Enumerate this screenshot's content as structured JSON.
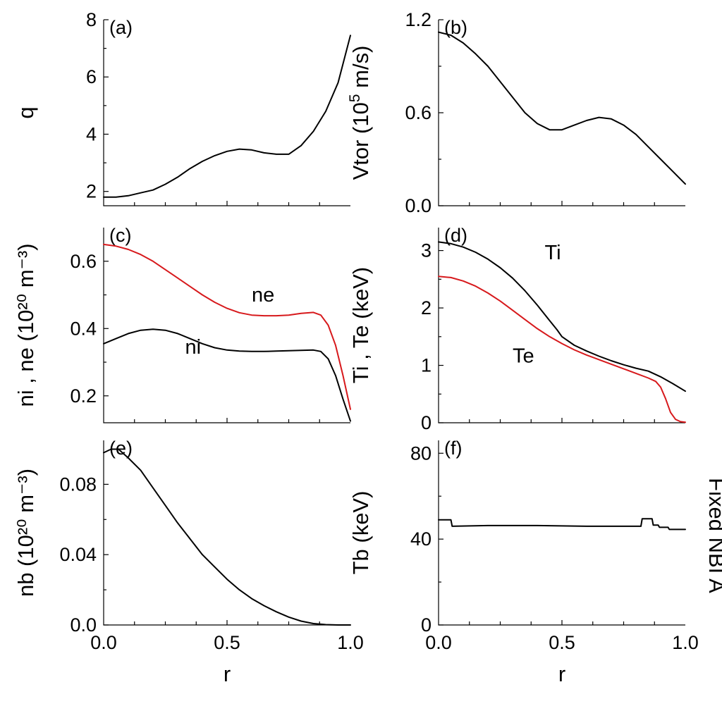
{
  "side_label": "Fixed NBI A",
  "chart_data": [
    {
      "type": "line",
      "panel": "(a)",
      "xlabel": "",
      "ylabel": "q",
      "xlim": [
        0,
        1
      ],
      "ylim": [
        1.5,
        8
      ],
      "xticks": [
        0,
        0.5,
        1
      ],
      "yticks": [
        2,
        4,
        6,
        8
      ],
      "show_xtick_labels": false,
      "series": [
        {
          "name": "",
          "color": "#000000",
          "x": [
            0,
            0.05,
            0.1,
            0.15,
            0.2,
            0.25,
            0.3,
            0.35,
            0.4,
            0.45,
            0.5,
            0.55,
            0.6,
            0.65,
            0.7,
            0.75,
            0.8,
            0.85,
            0.9,
            0.95,
            1.0
          ],
          "y": [
            1.8,
            1.8,
            1.85,
            1.95,
            2.05,
            2.25,
            2.5,
            2.8,
            3.05,
            3.25,
            3.4,
            3.48,
            3.45,
            3.35,
            3.3,
            3.3,
            3.6,
            4.1,
            4.8,
            5.8,
            7.45
          ]
        }
      ]
    },
    {
      "type": "line",
      "panel": "(b)",
      "xlabel": "",
      "ylabel": "Vtor (10^5 m/s)",
      "ylabel_parts": [
        "Vtor (10",
        "5",
        " m/s)"
      ],
      "xlim": [
        0,
        1
      ],
      "ylim": [
        0,
        1.2
      ],
      "xticks": [
        0,
        0.5,
        1
      ],
      "yticks": [
        0.0,
        0.6,
        1.2
      ],
      "ytick_labels": [
        "0.0",
        "0.6",
        "1.2"
      ],
      "show_xtick_labels": false,
      "series": [
        {
          "name": "",
          "color": "#000000",
          "x": [
            0,
            0.05,
            0.1,
            0.15,
            0.2,
            0.25,
            0.3,
            0.35,
            0.4,
            0.45,
            0.5,
            0.55,
            0.6,
            0.65,
            0.7,
            0.75,
            0.8,
            0.85,
            0.9,
            0.95,
            1.0
          ],
          "y": [
            1.12,
            1.1,
            1.05,
            0.98,
            0.9,
            0.8,
            0.7,
            0.6,
            0.53,
            0.49,
            0.49,
            0.52,
            0.55,
            0.57,
            0.56,
            0.52,
            0.46,
            0.38,
            0.3,
            0.22,
            0.14
          ]
        }
      ]
    },
    {
      "type": "line",
      "panel": "(c)",
      "xlabel": "",
      "ylabel": "ni , ne (10²⁰ m⁻³)",
      "xlim": [
        0,
        1
      ],
      "ylim": [
        0.12,
        0.7
      ],
      "xticks": [
        0,
        0.5,
        1
      ],
      "yticks": [
        0.2,
        0.4,
        0.6
      ],
      "ytick_labels": [
        "0.2",
        "0.4",
        "0.6"
      ],
      "show_xtick_labels": false,
      "series": [
        {
          "name": "ne",
          "color": "#d7191c",
          "label_at": [
            0.6,
            0.48
          ],
          "x": [
            0,
            0.05,
            0.1,
            0.15,
            0.2,
            0.25,
            0.3,
            0.35,
            0.4,
            0.45,
            0.5,
            0.55,
            0.6,
            0.65,
            0.7,
            0.75,
            0.8,
            0.85,
            0.88,
            0.91,
            0.94,
            0.97,
            1.0
          ],
          "y": [
            0.65,
            0.645,
            0.635,
            0.62,
            0.6,
            0.575,
            0.55,
            0.525,
            0.5,
            0.478,
            0.46,
            0.447,
            0.44,
            0.438,
            0.438,
            0.44,
            0.445,
            0.448,
            0.44,
            0.41,
            0.35,
            0.26,
            0.16
          ]
        },
        {
          "name": "ni",
          "color": "#000000",
          "label_at": [
            0.33,
            0.325
          ],
          "x": [
            0,
            0.05,
            0.1,
            0.15,
            0.2,
            0.25,
            0.3,
            0.35,
            0.4,
            0.45,
            0.5,
            0.55,
            0.6,
            0.65,
            0.7,
            0.75,
            0.8,
            0.85,
            0.88,
            0.91,
            0.94,
            0.97,
            1.0
          ],
          "y": [
            0.355,
            0.37,
            0.385,
            0.395,
            0.398,
            0.395,
            0.385,
            0.37,
            0.355,
            0.343,
            0.336,
            0.333,
            0.332,
            0.332,
            0.333,
            0.334,
            0.335,
            0.336,
            0.332,
            0.31,
            0.26,
            0.19,
            0.125
          ]
        }
      ]
    },
    {
      "type": "line",
      "panel": "(d)",
      "xlabel": "",
      "ylabel": "Ti , Te (keV)",
      "xlim": [
        0,
        1
      ],
      "ylim": [
        0,
        3.4
      ],
      "xticks": [
        0,
        0.5,
        1
      ],
      "yticks": [
        0,
        1,
        2,
        3
      ],
      "show_xtick_labels": false,
      "series": [
        {
          "name": "Ti",
          "color": "#000000",
          "label_at": [
            0.43,
            2.85
          ],
          "x": [
            0,
            0.05,
            0.1,
            0.15,
            0.2,
            0.25,
            0.3,
            0.35,
            0.4,
            0.45,
            0.48,
            0.5,
            0.55,
            0.6,
            0.65,
            0.7,
            0.75,
            0.8,
            0.85,
            0.9,
            0.95,
            1.0
          ],
          "y": [
            3.15,
            3.12,
            3.06,
            2.97,
            2.85,
            2.7,
            2.52,
            2.3,
            2.05,
            1.78,
            1.62,
            1.5,
            1.35,
            1.25,
            1.16,
            1.08,
            1.01,
            0.95,
            0.9,
            0.8,
            0.68,
            0.55
          ]
        },
        {
          "name": "Te",
          "color": "#d7191c",
          "label_at": [
            0.3,
            1.05
          ],
          "x": [
            0,
            0.05,
            0.1,
            0.15,
            0.2,
            0.25,
            0.3,
            0.35,
            0.4,
            0.45,
            0.5,
            0.55,
            0.6,
            0.65,
            0.7,
            0.75,
            0.8,
            0.85,
            0.88,
            0.9,
            0.92,
            0.94,
            0.96,
            0.98,
            1.0
          ],
          "y": [
            2.55,
            2.53,
            2.47,
            2.38,
            2.26,
            2.12,
            1.96,
            1.8,
            1.64,
            1.5,
            1.38,
            1.27,
            1.18,
            1.1,
            1.02,
            0.94,
            0.86,
            0.78,
            0.72,
            0.62,
            0.42,
            0.18,
            0.06,
            0.02,
            0.01
          ]
        }
      ]
    },
    {
      "type": "line",
      "panel": "(e)",
      "xlabel": "r",
      "ylabel": "nb (10²⁰ m⁻³)",
      "xlim": [
        0,
        1
      ],
      "ylim": [
        0,
        0.105
      ],
      "xticks": [
        0,
        0.5,
        1
      ],
      "xtick_labels": [
        "0.0",
        "0.5",
        "1.0"
      ],
      "yticks": [
        0.0,
        0.04,
        0.08
      ],
      "ytick_labels": [
        "0.0",
        "0.04",
        "0.08"
      ],
      "show_xtick_labels": true,
      "series": [
        {
          "name": "",
          "color": "#000000",
          "x": [
            0,
            0.03,
            0.06,
            0.1,
            0.15,
            0.2,
            0.25,
            0.3,
            0.35,
            0.4,
            0.45,
            0.5,
            0.55,
            0.6,
            0.65,
            0.7,
            0.75,
            0.8,
            0.85,
            0.9,
            0.95,
            1.0
          ],
          "y": [
            0.098,
            0.1,
            0.1,
            0.095,
            0.088,
            0.078,
            0.068,
            0.058,
            0.049,
            0.04,
            0.033,
            0.026,
            0.02,
            0.015,
            0.011,
            0.0075,
            0.0045,
            0.0022,
            0.0008,
            0.0002,
            0.0,
            0.0
          ]
        }
      ]
    },
    {
      "type": "line",
      "panel": "(f)",
      "xlabel": "r",
      "ylabel": "Tb (keV)",
      "xlim": [
        0,
        1
      ],
      "ylim": [
        0,
        86
      ],
      "xticks": [
        0,
        0.5,
        1
      ],
      "xtick_labels": [
        "0.0",
        "0.5",
        "1.0"
      ],
      "yticks": [
        0,
        40,
        80
      ],
      "show_xtick_labels": true,
      "series": [
        {
          "name": "",
          "color": "#000000",
          "x": [
            0,
            0.05,
            0.055,
            0.2,
            0.4,
            0.6,
            0.8,
            0.82,
            0.825,
            0.865,
            0.87,
            0.89,
            0.895,
            0.93,
            0.935,
            1.0
          ],
          "y": [
            49,
            49,
            46,
            46.3,
            46.3,
            46,
            46,
            46,
            49.5,
            49.5,
            46.5,
            46.5,
            45.5,
            45.5,
            44.5,
            44.5
          ]
        }
      ]
    }
  ]
}
